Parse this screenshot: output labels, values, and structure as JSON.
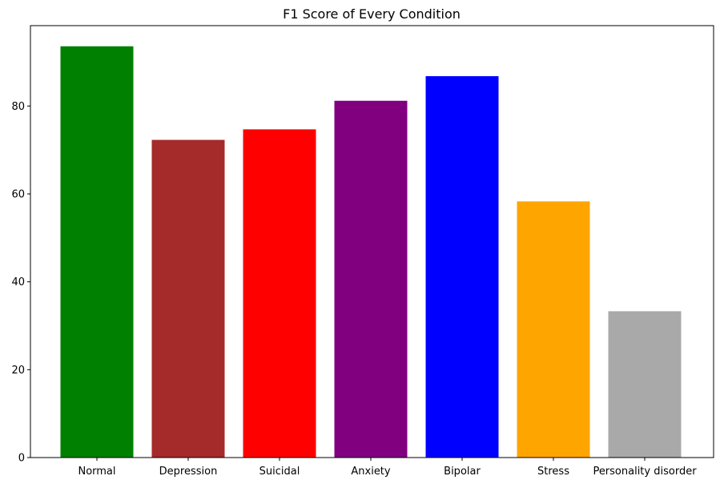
{
  "chart_data": {
    "type": "bar",
    "title": "F1 Score of Every Condition",
    "xlabel": "",
    "ylabel": "",
    "categories": [
      "Normal",
      "Depression",
      "Suicidal",
      "Anxiety",
      "Bipolar",
      "Stress",
      "Personality disorder"
    ],
    "values": [
      93.6,
      72.3,
      74.7,
      81.2,
      86.8,
      58.3,
      33.3
    ],
    "colors": [
      "#008000",
      "#A52A2A",
      "#FF0000",
      "#800080",
      "#0000FF",
      "#FFA500",
      "#A9A9A9"
    ],
    "ylim": [
      0,
      98.3
    ],
    "yticks": [
      0,
      20,
      40,
      60,
      80
    ],
    "grid": false,
    "legend": "none"
  }
}
